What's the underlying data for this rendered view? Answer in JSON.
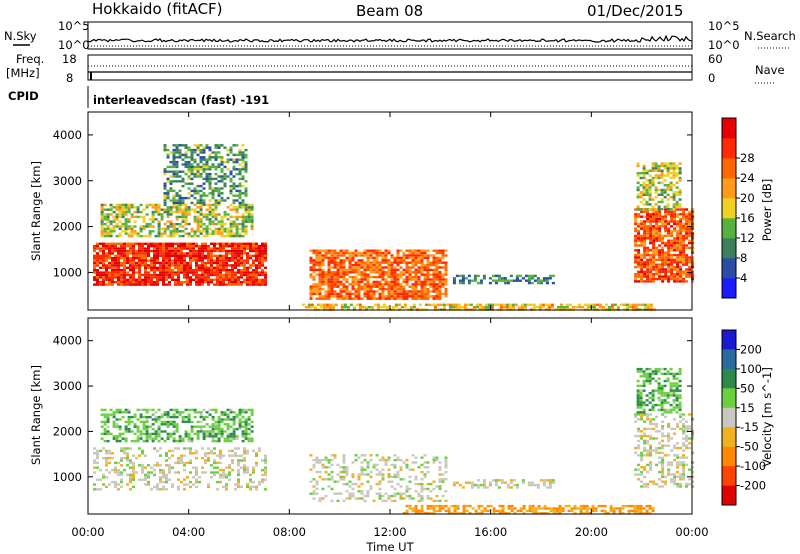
{
  "header": {
    "title": "Hokkaido (fitACF)",
    "beam": "Beam 08",
    "date": "01/Dec/2015"
  },
  "summary_panels": {
    "nsky_label": "N.Sky",
    "nsearch_label": "N.Search",
    "nsky_ticks": [
      "10^5",
      "10^0"
    ],
    "nsearch_ticks": [
      "10^5",
      "10^0"
    ],
    "freq_label": "Freq.",
    "freq_unit": "[MHz]",
    "freq_ticks": [
      "18",
      "8"
    ],
    "nave_label": "Nave",
    "nave_ticks": [
      "60",
      "0"
    ],
    "cpid_label": "CPID",
    "cpid_text": "interleavedscan (fast) -191"
  },
  "x_axis": {
    "label": "Time UT",
    "ticks": [
      "00:00",
      "04:00",
      "08:00",
      "12:00",
      "16:00",
      "20:00",
      "00:00"
    ]
  },
  "chart_data": [
    {
      "type": "heatmap",
      "panel": "power",
      "xlabel": "Time UT",
      "ylabel": "Slant Range [km]",
      "xlim": [
        0,
        24
      ],
      "ylim": [
        180,
        4500
      ],
      "y_ticks": [
        "1000",
        "2000",
        "3000",
        "4000"
      ],
      "colorbar": {
        "label": "Power [dB]",
        "ticks": [
          "4",
          "8",
          "12",
          "16",
          "20",
          "24",
          "28"
        ],
        "colors": [
          "#1a1aff",
          "#2a4ea6",
          "#3c7f5c",
          "#56b23c",
          "#f0d020",
          "#ff9a1a",
          "#ff6600",
          "#ff2a00",
          "#e60000"
        ],
        "range": [
          0,
          30
        ]
      },
      "regions": [
        {
          "name": "morning-band",
          "t0": 0.2,
          "t1": 7.0,
          "r0": 750,
          "r1": 1650,
          "level": 0.9
        },
        {
          "name": "morning-upper",
          "t0": 0.5,
          "t1": 6.5,
          "r0": 1800,
          "r1": 2500,
          "level": 0.45
        },
        {
          "name": "morning-sparse",
          "t0": 3.0,
          "t1": 6.3,
          "r0": 2500,
          "r1": 3800,
          "level": 0.3
        },
        {
          "name": "noon-patch",
          "t0": 8.8,
          "t1": 14.2,
          "r0": 450,
          "r1": 1500,
          "level": 0.75
        },
        {
          "name": "afternoon-band",
          "t0": 14.5,
          "t1": 18.5,
          "r0": 750,
          "r1": 950,
          "level": 0.25
        },
        {
          "name": "near-range",
          "t0": 8.5,
          "t1": 22.5,
          "r0": 180,
          "r1": 320,
          "level": 0.55
        },
        {
          "name": "evening-band",
          "t0": 21.7,
          "t1": 24.0,
          "r0": 800,
          "r1": 2400,
          "level": 0.8
        },
        {
          "name": "evening-upper",
          "t0": 21.8,
          "t1": 23.5,
          "r0": 2400,
          "r1": 3400,
          "level": 0.45
        }
      ]
    },
    {
      "type": "heatmap",
      "panel": "velocity",
      "xlabel": "Time UT",
      "ylabel": "Slant Range [km]",
      "xlim": [
        0,
        24
      ],
      "ylim": [
        180,
        4500
      ],
      "y_ticks": [
        "1000",
        "2000",
        "3000",
        "4000"
      ],
      "colorbar": {
        "label": "Velocity [m s^-1]",
        "ticks": [
          "200",
          "100",
          "50",
          "15",
          "-15",
          "-50",
          "-100",
          "-200"
        ],
        "colors": [
          "#1a1ad0",
          "#2a6aa0",
          "#2e8a4a",
          "#6ad040",
          "#c8c8c0",
          "#f0b020",
          "#ff8800",
          "#ff4400",
          "#e00000"
        ],
        "range": [
          -250,
          250
        ]
      },
      "regions": [
        {
          "name": "morning-band",
          "t0": 0.2,
          "t1": 7.0,
          "r0": 750,
          "r1": 1650,
          "level": 0.0
        },
        {
          "name": "morning-upper",
          "t0": 0.5,
          "t1": 6.5,
          "r0": 1800,
          "r1": 2500,
          "level": 0.3
        },
        {
          "name": "noon-patch",
          "t0": 8.8,
          "t1": 14.2,
          "r0": 450,
          "r1": 1500,
          "level": 0.0
        },
        {
          "name": "afternoon-band",
          "t0": 14.5,
          "t1": 18.5,
          "r0": 750,
          "r1": 950,
          "level": 0.0
        },
        {
          "name": "near-range",
          "t0": 12.5,
          "t1": 22.5,
          "r0": 180,
          "r1": 380,
          "level": -0.4
        },
        {
          "name": "evening-band",
          "t0": 21.7,
          "t1": 24.0,
          "r0": 800,
          "r1": 2400,
          "level": 0.0
        },
        {
          "name": "evening-upper",
          "t0": 21.8,
          "t1": 23.5,
          "r0": 2400,
          "r1": 3400,
          "level": 0.3
        }
      ]
    }
  ]
}
